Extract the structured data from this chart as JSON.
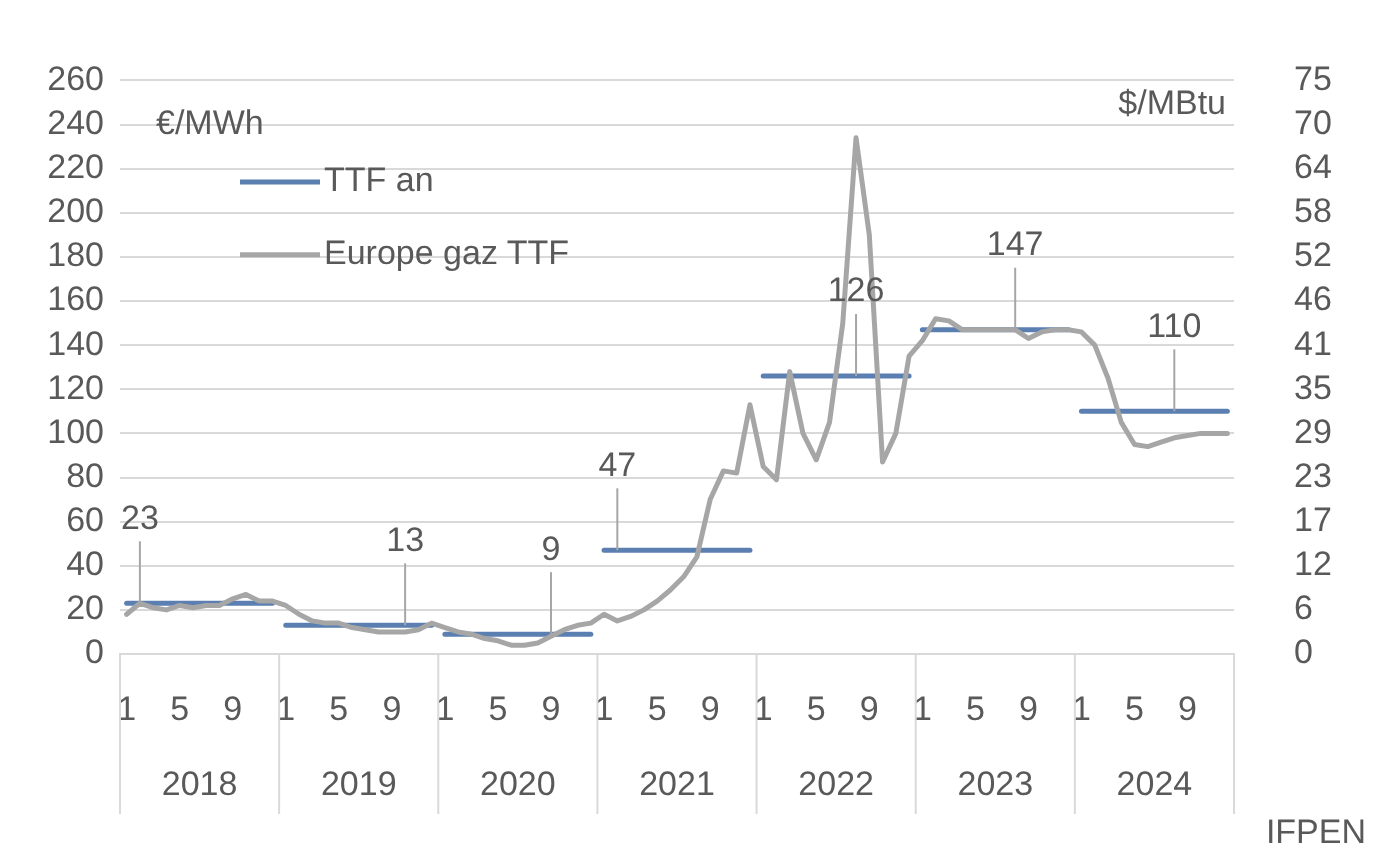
{
  "chart_data": {
    "type": "line",
    "ylabel": "€/MWh",
    "y2label": "$/MBtu",
    "categories": [
      "1",
      null,
      null,
      null,
      "5",
      null,
      null,
      null,
      "9",
      null,
      null,
      null,
      "1",
      null,
      null,
      null,
      "5",
      null,
      null,
      null,
      "9",
      null,
      null,
      null,
      "1",
      null,
      null,
      null,
      "5",
      null,
      null,
      null,
      "9",
      null,
      null,
      null,
      "1",
      null,
      null,
      null,
      "5",
      null,
      null,
      null,
      "9",
      null,
      null,
      null,
      "1",
      null,
      null,
      null,
      "5",
      null,
      null,
      null,
      "9",
      null,
      null,
      null,
      "1",
      null,
      null,
      null,
      "5",
      null,
      null,
      null,
      "9",
      null,
      null,
      null,
      "1",
      null,
      null,
      null,
      "5",
      null,
      null,
      null,
      "9",
      null,
      null,
      null
    ],
    "series": [
      {
        "name": "TTF an",
        "color": "#5b7fb0",
        "values": [
          23,
          23,
          23,
          23,
          23,
          23,
          23,
          23,
          23,
          23,
          23,
          23,
          13,
          13,
          13,
          13,
          13,
          13,
          13,
          13,
          13,
          13,
          13,
          13,
          9,
          9,
          9,
          9,
          9,
          9,
          9,
          9,
          9,
          9,
          9,
          9,
          47,
          47,
          47,
          47,
          47,
          47,
          47,
          47,
          47,
          47,
          47,
          47,
          126,
          126,
          126,
          126,
          126,
          126,
          126,
          126,
          126,
          126,
          126,
          126,
          147,
          147,
          147,
          147,
          147,
          147,
          147,
          147,
          147,
          147,
          147,
          147,
          110,
          110,
          110,
          110,
          110,
          110,
          110,
          110,
          110,
          110,
          110,
          110
        ],
        "value_labels": [
          null,
          "23",
          null,
          null,
          null,
          null,
          null,
          null,
          null,
          null,
          null,
          null,
          null,
          null,
          null,
          null,
          null,
          null,
          null,
          null,
          null,
          "13",
          null,
          null,
          null,
          null,
          null,
          null,
          null,
          null,
          null,
          null,
          "9",
          null,
          null,
          null,
          null,
          "47",
          null,
          null,
          null,
          null,
          null,
          null,
          null,
          null,
          null,
          null,
          null,
          null,
          null,
          null,
          null,
          null,
          null,
          "126",
          null,
          null,
          null,
          null,
          null,
          null,
          null,
          null,
          null,
          null,
          null,
          "147",
          null,
          null,
          null,
          null,
          null,
          null,
          null,
          null,
          null,
          null,
          null,
          "110",
          null,
          null,
          null,
          null
        ]
      },
      {
        "name": "Europe gaz TTF",
        "color": "#a6a6a6",
        "values": [
          18,
          23,
          21,
          20,
          22,
          21,
          22,
          22,
          25,
          27,
          24,
          24,
          22,
          18,
          15,
          14,
          14,
          12,
          11,
          10,
          10,
          10,
          11,
          14,
          12,
          10,
          9,
          7,
          6,
          4,
          4,
          5,
          8,
          11,
          13,
          14,
          18,
          15,
          17,
          20,
          24,
          29,
          35,
          44,
          70,
          83,
          82,
          113,
          85,
          79,
          128,
          100,
          88,
          105,
          150,
          234,
          190,
          87,
          100,
          135,
          142,
          152,
          151,
          147,
          147,
          147,
          147,
          147,
          143,
          146,
          147,
          147,
          146,
          140,
          125,
          105,
          95,
          94,
          96,
          98,
          99,
          100,
          100,
          100
        ]
      }
    ],
    "ylim": [
      0,
      260
    ],
    "yticks": [
      0,
      20,
      40,
      60,
      80,
      100,
      120,
      140,
      160,
      180,
      200,
      220,
      240,
      260
    ],
    "y2lim": [
      0,
      75.4
    ],
    "y2ticks": [
      0,
      {
        "value": 5.8,
        "label": "6"
      },
      {
        "value": 11.6,
        "label": "12"
      },
      {
        "value": 17.4,
        "label": "17"
      },
      {
        "value": 23.2,
        "label": "23"
      },
      29,
      {
        "value": 34.8,
        "label": "35"
      },
      {
        "value": 40.6,
        "label": "41"
      },
      {
        "value": 46.4,
        "label": "46"
      },
      {
        "value": 52.2,
        "label": "52"
      },
      58,
      {
        "value": 63.8,
        "label": "64"
      },
      {
        "value": 69.6,
        "label": "70"
      },
      {
        "value": 75.4,
        "label": "75"
      }
    ],
    "grid": "y",
    "legend": "top left",
    "marker": "none",
    "line_style": "solid",
    "annotations": [
      "2018",
      "2019",
      "2020",
      "2021",
      "2022",
      "2023",
      "2024",
      "IFPEN"
    ]
  }
}
